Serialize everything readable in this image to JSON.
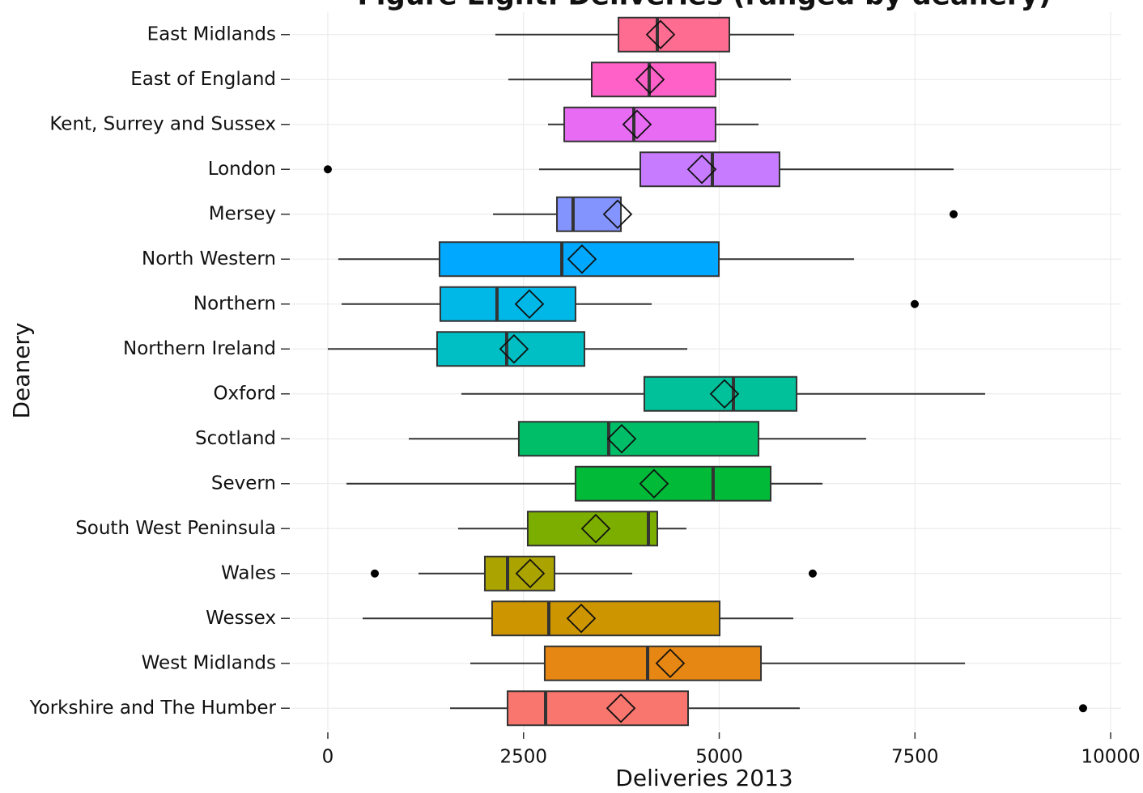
{
  "chart_data": {
    "type": "boxplot",
    "title": "Figure Eight: Deliveries (ranged by deanery)",
    "xlabel": "Deliveries 2013",
    "ylabel": "Deanery",
    "categories": [
      "East Midlands",
      "East of England",
      "Kent, Surrey and Sussex",
      "London",
      "Mersey",
      "North Western",
      "Northern",
      "Northern Ireland",
      "Oxford",
      "Scotland",
      "Severn",
      "South West Peninsula",
      "Wales",
      "Wessex",
      "West Midlands",
      "Yorkshire and The Humber"
    ],
    "min": [
      2140,
      2306,
      2813,
      2699,
      2110,
      134,
      176,
      0,
      1706,
      1034,
      238,
      1665,
      1158,
      445,
      1820,
      1562
    ],
    "q1": [
      3713,
      3371,
      3020,
      3992,
      2927,
      1427,
      1437,
      1396,
      4043,
      2440,
      3164,
      2554,
      2006,
      2099,
      2771,
      2296
    ],
    "median": [
      4209,
      4105,
      3909,
      4912,
      3133,
      2989,
      2161,
      2285,
      5181,
      3588,
      4922,
      4095,
      2296,
      2823,
      4085,
      2782
    ],
    "q3": [
      5129,
      4953,
      4953,
      5770,
      3744,
      4995,
      3164,
      3278,
      5988,
      5502,
      5657,
      4209,
      2896,
      5005,
      5533,
      4602
    ],
    "max": [
      5957,
      5915,
      5502,
      7994,
      3744,
      6722,
      4137,
      4592,
      8397,
      6877,
      6319,
      4581,
      3888,
      5946,
      8139,
      6029
    ],
    "mean": [
      4250,
      4116,
      3950,
      4778,
      3702,
      3247,
      2575,
      2378,
      5067,
      3754,
      4167,
      3423,
      2585,
      3237,
      4374,
      3744
    ],
    "outliers": [
      [],
      [],
      [],
      [
        0
      ],
      [
        7994
      ],
      [],
      [
        7497
      ],
      [],
      [],
      [],
      [],
      [],
      [
        600,
        6194
      ],
      [],
      [],
      [
        9648
      ]
    ],
    "colors": [
      "#FF6C91",
      "#FF61C9",
      "#E76BF3",
      "#C77CFF",
      "#8494FF",
      "#00A9FF",
      "#00B8E7",
      "#00BFC4",
      "#00C19A",
      "#00BE67",
      "#00BA38",
      "#7CAE00",
      "#ABA300",
      "#CD9600",
      "#E68613",
      "#F8766D"
    ],
    "xlim": [
      -465,
      10134
    ],
    "xticks": [
      0,
      2500,
      5000,
      7500,
      10000
    ],
    "grid": true
  }
}
